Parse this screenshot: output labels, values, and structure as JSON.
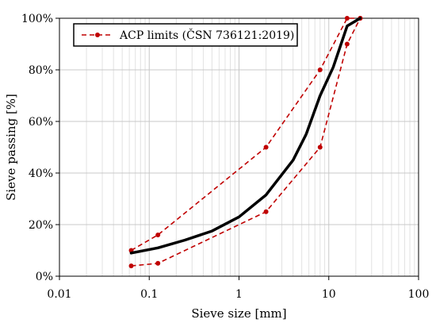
{
  "chart_data": {
    "type": "line",
    "xscale": "log",
    "xlim": [
      0.01,
      100
    ],
    "ylim": [
      0,
      100
    ],
    "xlabel": "Sieve size [mm]",
    "ylabel": "Sieve passing [%]",
    "xticks": [
      0.01,
      0.1,
      1,
      10,
      100
    ],
    "xtick_labels": [
      "0.01",
      "0.1",
      "1",
      "10",
      "100"
    ],
    "yticks": [
      0,
      20,
      40,
      60,
      80,
      100
    ],
    "ytick_labels": [
      "0%",
      "20%",
      "40%",
      "60%",
      "80%",
      "100%"
    ],
    "grid": true,
    "legend": {
      "position": "top-left",
      "entries": [
        "ACP limits (ČSN 736121:2019)"
      ]
    },
    "series": [
      {
        "name": "ACP limits (ČSN 736121:2019)",
        "style": "dashed",
        "color": "#c00000",
        "marker": "circle",
        "x": [
          0.063,
          0.125,
          2,
          8,
          16,
          22.4
        ],
        "y": [
          10,
          16,
          50,
          80,
          100,
          100
        ]
      },
      {
        "style": "dashed",
        "color": "#c00000",
        "marker": "circle",
        "x": [
          0.063,
          0.125,
          2,
          8,
          16,
          22.4
        ],
        "y": [
          4,
          5,
          25,
          50,
          90,
          100
        ]
      },
      {
        "style": "solid",
        "color": "#000000",
        "marker": "none",
        "x": [
          0.063,
          0.125,
          0.25,
          0.5,
          1,
          2,
          4,
          5.6,
          8,
          11.2,
          16,
          22.4
        ],
        "y": [
          9,
          11,
          14,
          17.5,
          23,
          31.5,
          45,
          55,
          70,
          81,
          97,
          100
        ]
      }
    ]
  }
}
